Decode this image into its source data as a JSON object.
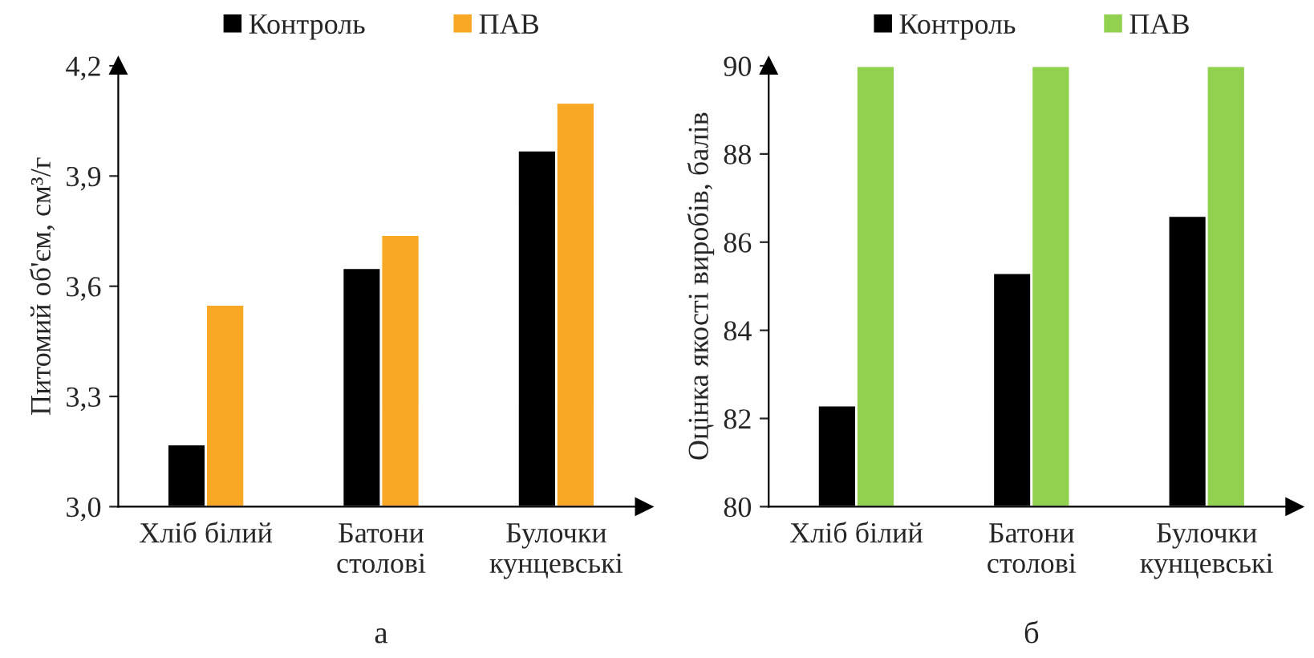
{
  "chart_data": [
    {
      "type": "bar",
      "categories": [
        "Хліб білий",
        "Батони\nстолові",
        "Булочки\nкунцевські"
      ],
      "ylabel": "Питомий об'єм, см³/г",
      "ylim": [
        3.0,
        4.2
      ],
      "yticks": [
        {
          "value": 3.0,
          "label": "3,0"
        },
        {
          "value": 3.3,
          "label": "3,3"
        },
        {
          "value": 3.6,
          "label": "3,6"
        },
        {
          "value": 3.9,
          "label": "3,9"
        },
        {
          "value": 4.2,
          "label": "4,2"
        }
      ],
      "legend": "top",
      "grid": false,
      "annotations": [
        "а"
      ],
      "series": [
        {
          "name": "Контроль",
          "color": "#000000",
          "values": [
            3.17,
            3.65,
            3.97
          ]
        },
        {
          "name": "ПАВ",
          "color": "#f9a825",
          "values": [
            3.55,
            3.74,
            4.1
          ]
        }
      ]
    },
    {
      "type": "bar",
      "categories": [
        "Хліб білий",
        "Батони\nстолові",
        "Булочки\nкунцевські"
      ],
      "ylabel": "Оцінка якості виробів, балів",
      "ylim": [
        80,
        90
      ],
      "yticks": [
        80,
        82,
        84,
        86,
        88,
        90
      ],
      "legend": "top",
      "grid": false,
      "annotations": [
        "б"
      ],
      "series": [
        {
          "name": "Контроль",
          "color": "#000000",
          "values": [
            82.3,
            85.3,
            86.6
          ]
        },
        {
          "name": "ПАВ",
          "color": "#92d050",
          "values": [
            90,
            90,
            90
          ]
        }
      ]
    }
  ]
}
